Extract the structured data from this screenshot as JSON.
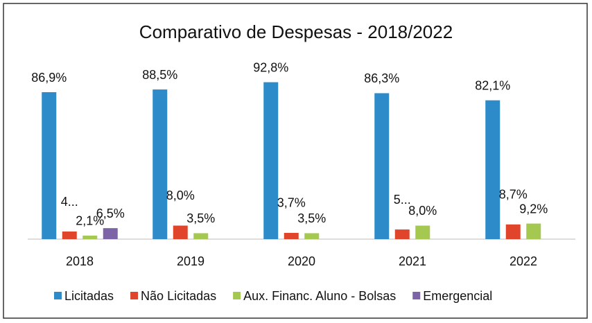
{
  "chart_data": {
    "type": "bar",
    "title": "Comparativo de Despesas - 2018/2022",
    "categories": [
      "2018",
      "2019",
      "2020",
      "2021",
      "2022"
    ],
    "series": [
      {
        "name": "Licitadas",
        "color": "#2e8bc9",
        "values": [
          86.9,
          88.5,
          92.8,
          86.3,
          82.1
        ],
        "value_labels": [
          "86,9%",
          "88,5%",
          "92,8%",
          "86,3%",
          "82,1%"
        ]
      },
      {
        "name": "Não Licitadas",
        "color": "#e0452c",
        "values": [
          4.5,
          8.0,
          3.7,
          5.7,
          8.7
        ],
        "value_labels": [
          "4...",
          "8,0%",
          "3,7%",
          "5...",
          "8,7%"
        ]
      },
      {
        "name": "Aux. Financ. Aluno - Bolsas",
        "color": "#a4c850",
        "values": [
          2.1,
          3.5,
          3.5,
          8.0,
          9.2
        ],
        "value_labels": [
          "2,1%",
          "3,5%",
          "3,5%",
          "8,0%",
          "9,2%"
        ]
      },
      {
        "name": "Emergencial",
        "color": "#7d64a6",
        "values": [
          6.5,
          null,
          null,
          null,
          null
        ],
        "value_labels": [
          "6,5%",
          null,
          null,
          null,
          null
        ]
      }
    ]
  }
}
